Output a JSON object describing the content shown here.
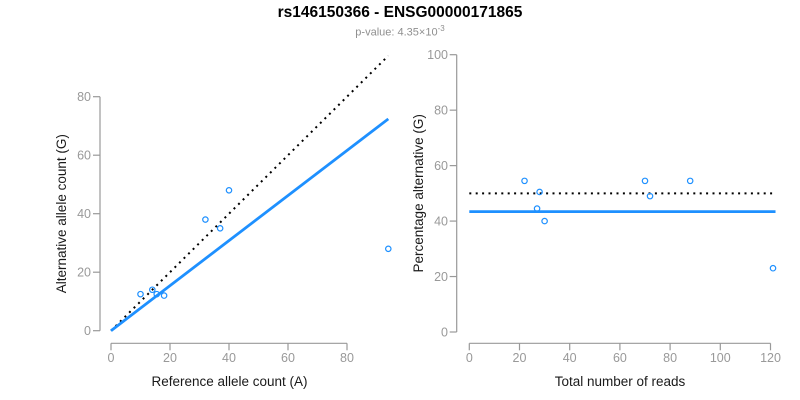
{
  "figure": {
    "title": "rs146150366 - ENSG00000171865",
    "pvalue_base": "p-value: 4.35×10",
    "pvalue_exponent": "-3"
  },
  "colors": {
    "accent_blue": "#1E90FF",
    "axis_gray": "#999999",
    "axis_title_dark": "#1a1a1a",
    "identity_black": "#000000",
    "subtitle_gray": "#8f8f8f"
  },
  "chart_data": [
    {
      "type": "scatter",
      "title": "",
      "xlabel": "Reference allele count (A)",
      "ylabel": "Alternative allele count (G)",
      "xlim": [
        0,
        95
      ],
      "ylim": [
        0,
        95
      ],
      "x_ticks": [
        0,
        20,
        40,
        60,
        80
      ],
      "y_ticks": [
        0,
        20,
        40,
        60,
        80
      ],
      "grid": false,
      "legend": "none",
      "point_color": "#1E90FF",
      "points": [
        {
          "x": 10,
          "y": 12.5
        },
        {
          "x": 14,
          "y": 14
        },
        {
          "x": 15.5,
          "y": 12.5
        },
        {
          "x": 18,
          "y": 12
        },
        {
          "x": 32,
          "y": 38
        },
        {
          "x": 37,
          "y": 35
        },
        {
          "x": 40,
          "y": 48
        },
        {
          "x": 94,
          "y": 28
        }
      ],
      "lines": [
        {
          "name": "identity-line",
          "style": "dotted",
          "color": "#000000",
          "width": 2,
          "from": {
            "x": 0,
            "y": 0
          },
          "to": {
            "x": 94,
            "y": 94
          }
        },
        {
          "name": "fit-line",
          "style": "solid",
          "color": "#1E90FF",
          "width": 2.8,
          "from": {
            "x": 0,
            "y": 0
          },
          "to": {
            "x": 94,
            "y": 72.4
          }
        }
      ]
    },
    {
      "type": "scatter",
      "title": "",
      "xlabel": "Total number of reads",
      "ylabel": "Percentage alternative (G)",
      "xlim": [
        0,
        122
      ],
      "ylim": [
        0,
        100
      ],
      "x_ticks": [
        0,
        20,
        40,
        60,
        80,
        100,
        120
      ],
      "y_ticks": [
        0,
        20,
        40,
        60,
        80,
        100
      ],
      "grid": false,
      "legend": "none",
      "point_color": "#1E90FF",
      "points": [
        {
          "x": 22,
          "y": 54.5
        },
        {
          "x": 27,
          "y": 44.5
        },
        {
          "x": 28,
          "y": 50.5
        },
        {
          "x": 30,
          "y": 40
        },
        {
          "x": 70,
          "y": 54.5
        },
        {
          "x": 72,
          "y": 49
        },
        {
          "x": 88,
          "y": 54.5
        },
        {
          "x": 121,
          "y": 23
        }
      ],
      "lines": [
        {
          "name": "expected-50pct-line",
          "style": "dotted",
          "color": "#000000",
          "width": 2,
          "from": {
            "x": 0,
            "y": 50
          },
          "to": {
            "x": 122,
            "y": 50
          }
        },
        {
          "name": "mean-pct-line",
          "style": "solid",
          "color": "#1E90FF",
          "width": 2.8,
          "from": {
            "x": 0,
            "y": 43.4
          },
          "to": {
            "x": 122,
            "y": 43.4
          }
        }
      ]
    }
  ]
}
